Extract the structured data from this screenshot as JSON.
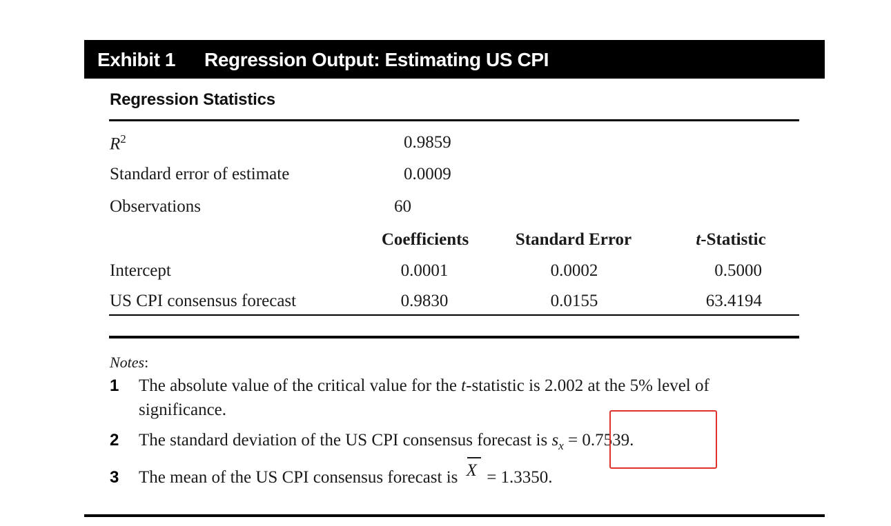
{
  "exhibit": {
    "label": "Exhibit 1",
    "title": "Regression Output: Estimating US CPI"
  },
  "regression_statistics": {
    "heading": "Regression Statistics",
    "r2_label_base": "R",
    "r2_label_sup": "2",
    "r2_value": "0.9859",
    "se_label": "Standard error of estimate",
    "se_value": "0.0009",
    "obs_label": "Observations",
    "obs_value": "60"
  },
  "coefficients_table": {
    "headers": {
      "coefficients": "Coefficients",
      "standard_error": "Standard Error",
      "t_stat_prefix": "t",
      "t_stat_suffix": "-Statistic"
    },
    "rows": [
      {
        "label": "Intercept",
        "coefficient": "0.0001",
        "standard_error": "0.0002",
        "t_statistic": "0.5000"
      },
      {
        "label": "US CPI consensus forecast",
        "coefficient": "0.9830",
        "standard_error": "0.0155",
        "t_statistic": "63.4194"
      }
    ]
  },
  "notes": {
    "heading": "Notes",
    "heading_colon": ":",
    "items": [
      {
        "num": "1",
        "line1_a": "The absolute value of the critical value for the ",
        "line1_t": "t",
        "line1_b": "-statistic is 2.002 at the 5% level of",
        "line2": "significance."
      },
      {
        "num": "2",
        "text": "The standard deviation of the US CPI consensus forecast is ",
        "sym_s": "s",
        "sym_sub": "x",
        "eq": " = 0.7539."
      },
      {
        "num": "3",
        "text": "The mean of the US CPI consensus forecast is ",
        "sym_x": "X",
        "eq": " = 1.3350."
      }
    ]
  },
  "colors": {
    "header_bg": "#000000",
    "header_fg": "#ffffff",
    "highlight": "#e0302a"
  }
}
